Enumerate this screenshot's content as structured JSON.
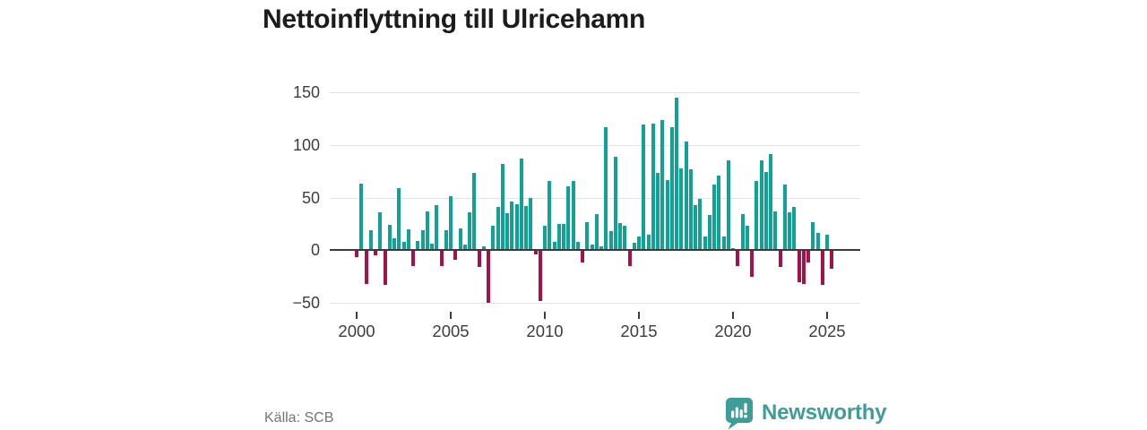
{
  "title": "Nettoinflyttning till Ulricehamn",
  "source": "Källa: SCB",
  "brand": {
    "name": "Newsworthy",
    "icon": "newsworthy-speech-bubble-chart-icon",
    "color": "#3f9d97"
  },
  "chart_data": {
    "type": "bar",
    "title": "Nettoinflyttning till Ulricehamn",
    "frequency": "quarterly",
    "start_year": 2000,
    "start_quarter": 1,
    "end_year": 2025,
    "end_quarter": 2,
    "ylim": [
      -50,
      150
    ],
    "y_tick_values": [
      -50,
      0,
      50,
      100,
      150
    ],
    "y_tick_labels": [
      "−50",
      "0",
      "50",
      "100",
      "150"
    ],
    "x_tick_years": [
      2000,
      2005,
      2010,
      2015,
      2020,
      2025
    ],
    "x_tick_labels": [
      "2000",
      "2005",
      "2010",
      "2015",
      "2020",
      "2025"
    ],
    "grid": "horizontal-only",
    "legend": "none",
    "positive_color": "#10a296",
    "negative_color": "#a81048",
    "values": [
      -7,
      63,
      -32,
      19,
      -5,
      36,
      -33,
      24,
      11,
      59,
      8,
      20,
      -15,
      9,
      19,
      37,
      6,
      43,
      -15,
      19,
      51,
      -9,
      21,
      5,
      36,
      73,
      -16,
      4,
      -50,
      23,
      41,
      82,
      35,
      46,
      44,
      87,
      42,
      50,
      -4,
      -48,
      23,
      66,
      8,
      25,
      25,
      61,
      66,
      8,
      -12,
      27,
      5,
      34,
      4,
      117,
      18,
      89,
      26,
      23,
      -15,
      7,
      13,
      119,
      15,
      120,
      73,
      124,
      67,
      117,
      145,
      78,
      103,
      77,
      43,
      49,
      13,
      33,
      62,
      71,
      13,
      85,
      2,
      -15,
      34,
      23,
      -25,
      66,
      85,
      74,
      91,
      37,
      -16,
      62,
      36,
      41,
      -30,
      -32,
      -12,
      27,
      16,
      -33,
      15,
      -18
    ]
  }
}
